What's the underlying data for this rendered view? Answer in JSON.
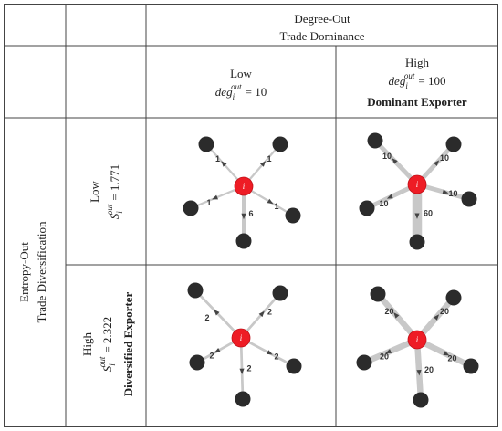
{
  "header": {
    "column_group_title": "Degree-Out",
    "column_group_subtitle": "Trade Dominance",
    "row_group_title": "Entropy-Out",
    "row_group_subtitle": "Trade Diversification"
  },
  "columns": [
    {
      "level": "Low",
      "var": "deg",
      "sub": "i",
      "sup": "out",
      "value": "= 10",
      "tag": ""
    },
    {
      "level": "High",
      "var": "deg",
      "sub": "i",
      "sup": "out",
      "value": "= 100",
      "tag": "Dominant Exporter"
    }
  ],
  "rows": [
    {
      "level": "Low",
      "var": "S",
      "sub": "i",
      "sup": "out",
      "value": "= 1.771",
      "tag": ""
    },
    {
      "level": "High",
      "var": "S",
      "sub": "i",
      "sup": "out",
      "value": "= 2.322",
      "tag": "Diversified Exporter"
    }
  ],
  "center_node_label": "i",
  "networks": [
    {
      "id": "low-low",
      "weights": [
        1,
        1,
        1,
        1,
        6
      ]
    },
    {
      "id": "low-high",
      "weights": [
        10,
        10,
        10,
        10,
        60
      ]
    },
    {
      "id": "high-low",
      "weights": [
        2,
        2,
        2,
        2,
        2
      ]
    },
    {
      "id": "high-high",
      "weights": [
        20,
        20,
        20,
        20,
        20
      ]
    }
  ]
}
